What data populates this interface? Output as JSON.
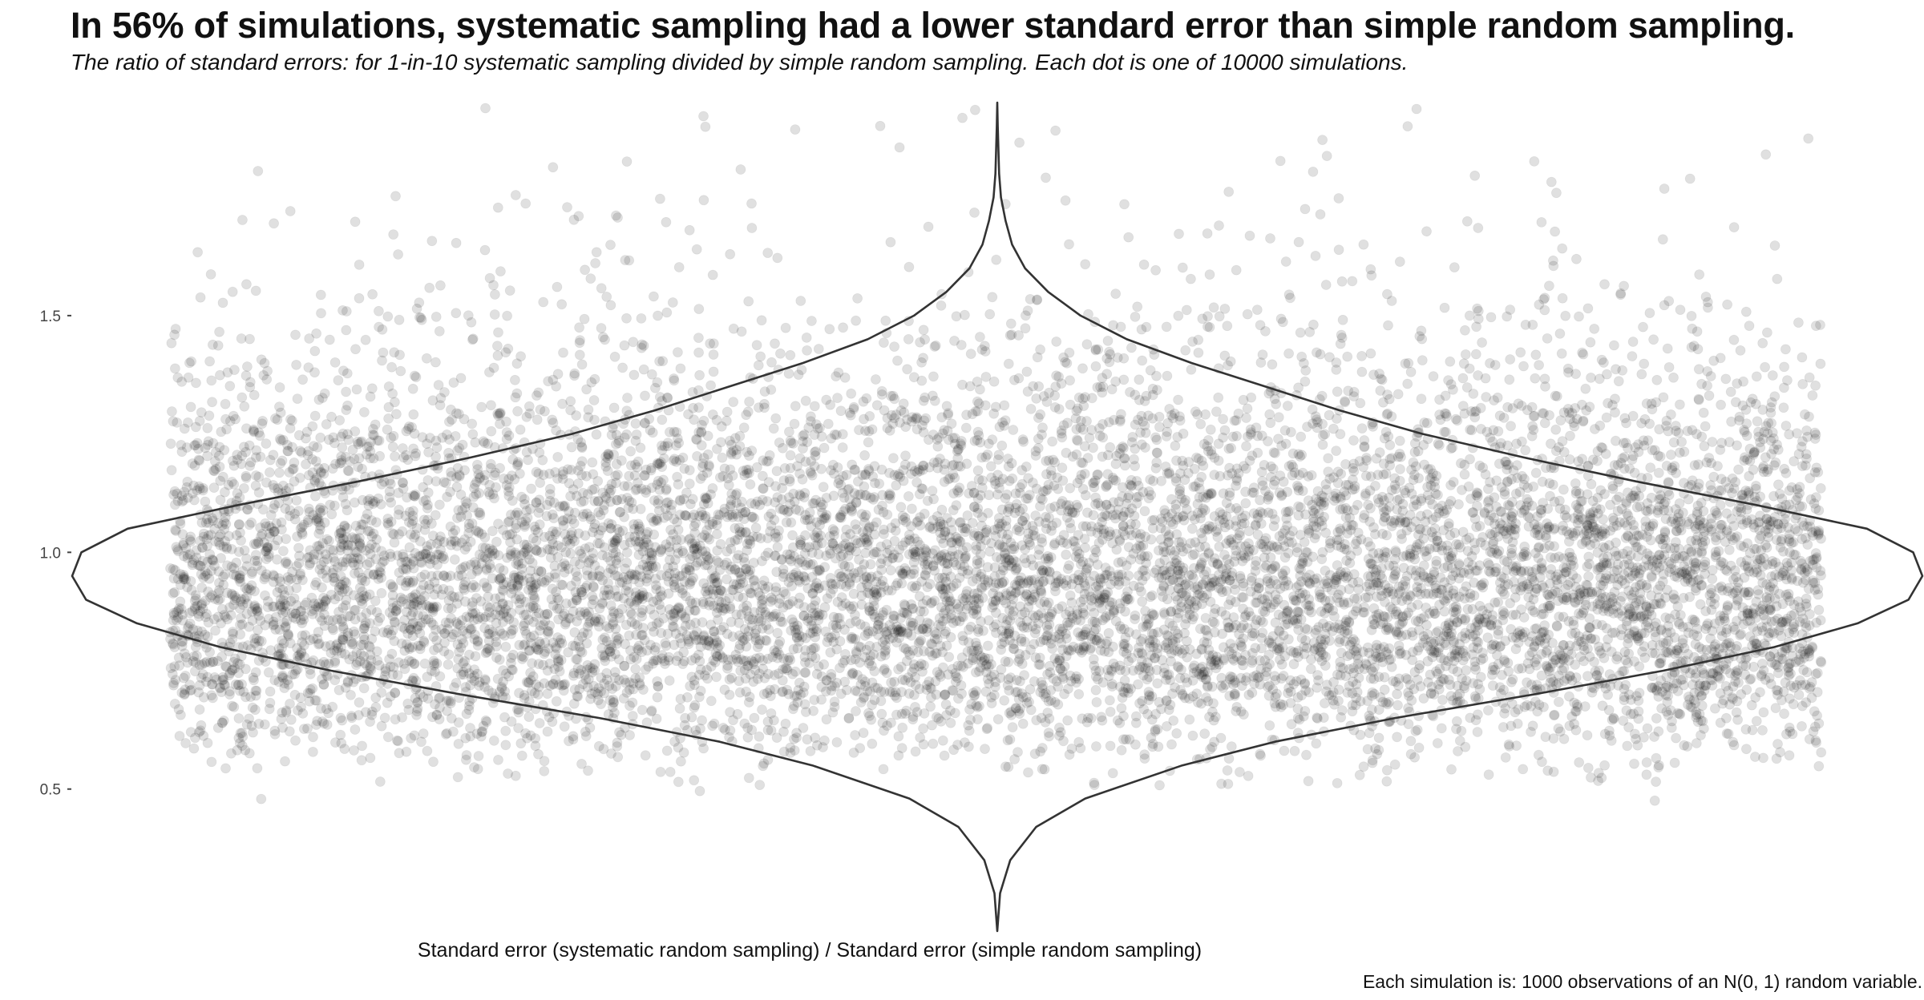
{
  "chart_data": {
    "type": "scatter",
    "overlay": "violin",
    "title": "In 56% of simulations, systematic sampling had a lower standard error than simple random sampling.",
    "subtitle": "The ratio of standard errors: for 1-in-10 systematic sampling divided by simple random sampling. Each dot is one of 10000 simulations.",
    "xlabel": "Standard error (systematic random sampling) / Standard error (simple random sampling)",
    "ylabel": "",
    "caption": "Each simulation is: 1000 observations of an N(0, 1) random variable.",
    "ylim": [
      0.2,
      1.95
    ],
    "yticks": [
      0.5,
      1.0,
      1.5
    ],
    "ytick_labels": [
      "0.5",
      "1.0",
      "1.5"
    ],
    "grid": false,
    "point_count": 10000,
    "share_below_1": 0.56,
    "points_color": "#000000",
    "point_opacity": 0.12,
    "violin_color": "#333333",
    "violin_density": [
      [
        0.2,
        0.0
      ],
      [
        0.28,
        0.003
      ],
      [
        0.35,
        0.014
      ],
      [
        0.42,
        0.042
      ],
      [
        0.48,
        0.095
      ],
      [
        0.55,
        0.2
      ],
      [
        0.6,
        0.3
      ],
      [
        0.65,
        0.43
      ],
      [
        0.7,
        0.58
      ],
      [
        0.75,
        0.72
      ],
      [
        0.8,
        0.84
      ],
      [
        0.85,
        0.93
      ],
      [
        0.9,
        0.985
      ],
      [
        0.95,
        1.0
      ],
      [
        1.0,
        0.99
      ],
      [
        1.05,
        0.94
      ],
      [
        1.1,
        0.82
      ],
      [
        1.15,
        0.69
      ],
      [
        1.2,
        0.57
      ],
      [
        1.25,
        0.46
      ],
      [
        1.3,
        0.37
      ],
      [
        1.35,
        0.29
      ],
      [
        1.4,
        0.21
      ],
      [
        1.45,
        0.14
      ],
      [
        1.5,
        0.09
      ],
      [
        1.55,
        0.055
      ],
      [
        1.6,
        0.03
      ],
      [
        1.65,
        0.016
      ],
      [
        1.7,
        0.009
      ],
      [
        1.75,
        0.004
      ],
      [
        1.8,
        0.002
      ],
      [
        1.9,
        0.0005
      ],
      [
        1.95,
        0.0
      ]
    ]
  }
}
